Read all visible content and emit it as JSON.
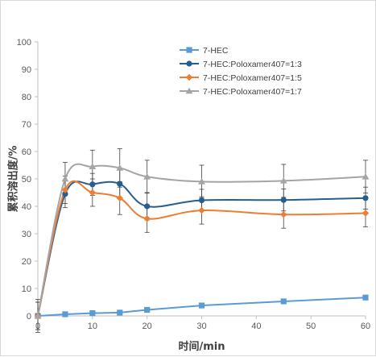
{
  "chart_data": {
    "type": "line",
    "title": "",
    "xlabel": "时间/min",
    "ylabel": "累积溶出度/%",
    "xlim": [
      0,
      60
    ],
    "ylim": [
      0,
      100
    ],
    "x_ticks": [
      "0",
      "10",
      "20",
      "30",
      "40",
      "50",
      "60"
    ],
    "y_ticks": [
      "0",
      "10",
      "20",
      "30",
      "40",
      "50",
      "60",
      "70",
      "80",
      "90",
      "100"
    ],
    "grid": false,
    "legend_position": "top-right",
    "x": [
      0,
      5,
      10,
      15,
      20,
      30,
      45,
      60
    ],
    "series": [
      {
        "name": "7-HEC",
        "color": "#5b9bd5",
        "marker": "square",
        "smooth": false,
        "values": [
          0,
          0.6,
          1.0,
          1.2,
          2.2,
          3.8,
          5.3,
          6.7
        ],
        "errors": [
          0,
          0,
          0,
          0,
          0,
          0,
          0,
          0
        ]
      },
      {
        "name": "7-HEC:Poloxamer407=1:3",
        "color": "#255e91",
        "marker": "circle",
        "smooth": true,
        "values": [
          0,
          44.5,
          48.0,
          48.2,
          40.0,
          42.2,
          42.3,
          43.0
        ],
        "errors": [
          5,
          5,
          4,
          5,
          5,
          4,
          4,
          4
        ]
      },
      {
        "name": "7-HEC:Poloxamer407=1:5",
        "color": "#ed7d31",
        "marker": "diamond",
        "smooth": true,
        "values": [
          0,
          46.0,
          45.0,
          43.0,
          35.5,
          38.5,
          37.0,
          37.5
        ],
        "errors": [
          5,
          5,
          5,
          6,
          5,
          5,
          5,
          5
        ]
      },
      {
        "name": "7-HEC:Poloxamer407=1:7",
        "color": "#a5a5a5",
        "marker": "triangle",
        "smooth": true,
        "values": [
          0,
          50.0,
          54.5,
          54.0,
          50.8,
          49.0,
          49.3,
          50.8
        ],
        "errors": [
          6,
          6,
          6,
          7,
          6,
          6,
          6,
          6
        ]
      }
    ]
  }
}
